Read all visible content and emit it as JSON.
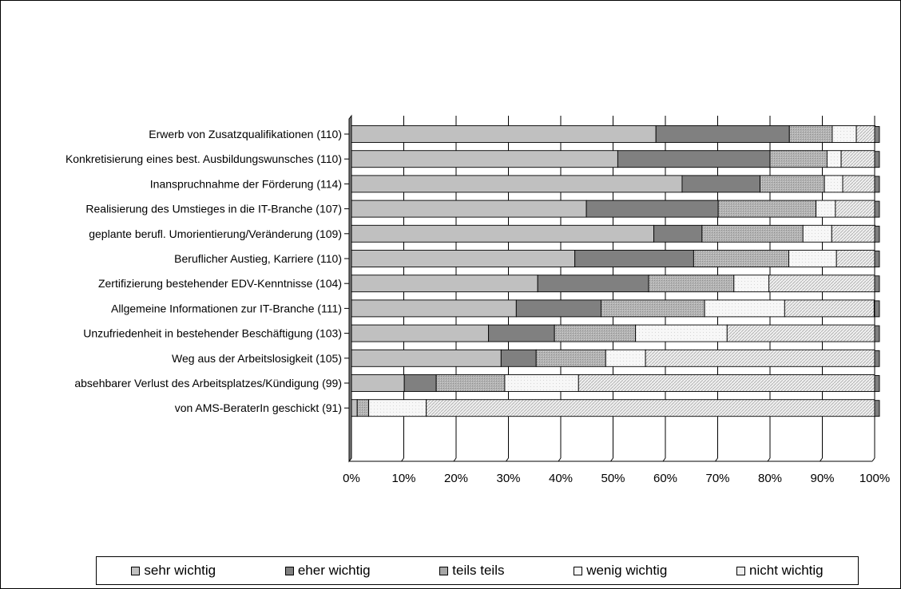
{
  "chart_data": {
    "type": "bar",
    "orientation": "horizontal",
    "stacked": true,
    "percent": true,
    "categories": [
      "Erwerb von Zusatzqualifikationen (110)",
      "Konkretisierung eines best. Ausbildungswunsches (110)",
      "Inanspruchnahme der Förderung (114)",
      "Realisierung des Umstieges in die IT-Branche (107)",
      "geplante berufl. Umorientierung/Veränderung (109)",
      "Beruflicher Austieg, Karriere (110)",
      "Zertifizierung bestehender EDV-Kenntnisse (104)",
      "Allgemeine Informationen zur IT-Branche (111)",
      "Unzufriedenheit in bestehender Beschäftigung (103)",
      "Weg aus der Arbeitslosigkeit (105)",
      "absehbarer Verlust des Arbeitsplatzes/Kündigung (99)",
      "von AMS-BeraterIn geschickt (91)"
    ],
    "series": [
      {
        "name": "sehr wichtig",
        "color": "#c0c0c0",
        "values": [
          58.2,
          50.9,
          63.2,
          44.9,
          57.8,
          42.7,
          35.6,
          31.5,
          26.2,
          28.6,
          10.1,
          1.1
        ]
      },
      {
        "name": "eher wichtig",
        "color": "#808080",
        "values": [
          25.5,
          29.1,
          14.9,
          25.2,
          9.2,
          22.7,
          21.2,
          16.2,
          12.6,
          6.7,
          6.1,
          0
        ]
      },
      {
        "name": "teils teils",
        "color": "#a6a6a6",
        "values": [
          8.2,
          10.9,
          12.3,
          18.7,
          19.3,
          18.2,
          16.3,
          19.8,
          15.5,
          13.3,
          13.1,
          2.2
        ]
      },
      {
        "name": "wenig wichtig",
        "color": "#f2f2f2",
        "values": [
          4.6,
          2.7,
          3.5,
          3.7,
          5.5,
          9.1,
          6.7,
          15.3,
          17.5,
          7.6,
          14.1,
          11.0
        ]
      },
      {
        "name": "nicht wichtig",
        "color": "#e6e6e6",
        "values": [
          3.6,
          6.4,
          6.1,
          7.5,
          8.3,
          7.3,
          20.2,
          17.1,
          28.2,
          43.8,
          56.6,
          85.7
        ]
      }
    ],
    "xaxis": {
      "ticks": [
        "0%",
        "10%",
        "20%",
        "30%",
        "40%",
        "50%",
        "60%",
        "70%",
        "80%",
        "90%",
        "100%"
      ],
      "range": [
        0,
        100
      ]
    },
    "title": "",
    "xlabel": "",
    "ylabel": "",
    "grid": true,
    "legend_position": "bottom"
  }
}
